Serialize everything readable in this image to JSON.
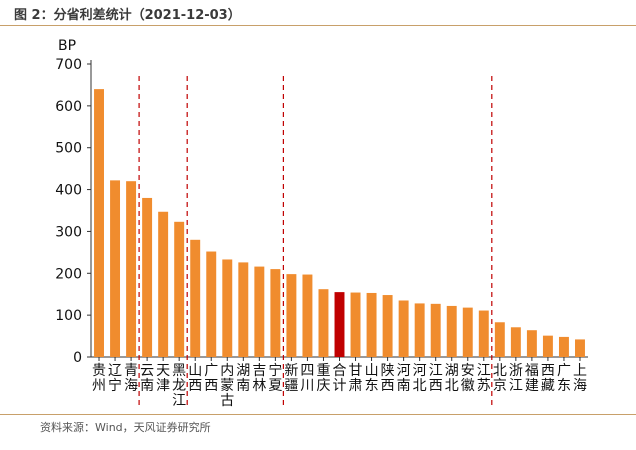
{
  "header": {
    "title": "图 2：分省利差统计（2021-12-03）"
  },
  "footer": {
    "source": "资料来源：Wind，天风证券研究所"
  },
  "chart_data": {
    "type": "bar",
    "unit_label": "BP",
    "ylim": [
      0,
      700
    ],
    "yticks": [
      0,
      100,
      200,
      300,
      400,
      500,
      600,
      700
    ],
    "categories": [
      "贵州",
      "辽宁",
      "青海",
      "云南",
      "天津",
      "黑龙江",
      "山西",
      "广西",
      "内蒙古",
      "湖南",
      "吉林",
      "宁夏",
      "新疆",
      "四川",
      "重庆",
      "合计",
      "甘肃",
      "山东",
      "陕西",
      "河南",
      "河北",
      "江西",
      "湖北",
      "安徽",
      "江苏",
      "北京",
      "浙江",
      "福建",
      "西藏",
      "广东",
      "上海"
    ],
    "values": [
      640,
      422,
      420,
      380,
      347,
      323,
      280,
      252,
      233,
      226,
      216,
      210,
      198,
      197,
      162,
      155,
      154,
      153,
      148,
      135,
      128,
      127,
      122,
      118,
      111,
      83,
      71,
      64,
      51,
      48,
      42
    ],
    "bar_color": "#f08c2e",
    "highlight": {
      "category": "合计",
      "color": "#c00000"
    },
    "dividers_after": [
      "青海",
      "黑龙江",
      "宁夏",
      "江苏"
    ],
    "divider_color": "#c00000"
  }
}
